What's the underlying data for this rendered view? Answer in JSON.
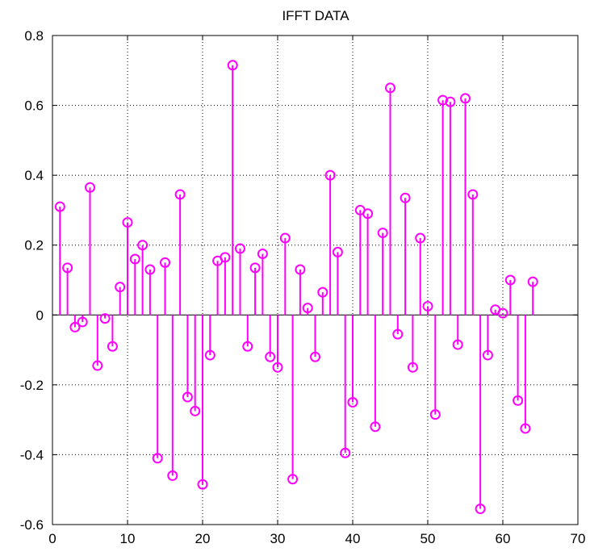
{
  "chart_data": {
    "type": "stem",
    "title": "IFFT DATA",
    "xlabel": "",
    "ylabel": "",
    "xlim": [
      0,
      70
    ],
    "ylim": [
      -0.6,
      0.8
    ],
    "xticks": [
      0,
      10,
      20,
      30,
      40,
      50,
      60,
      70
    ],
    "yticks": [
      -0.6,
      -0.4,
      -0.2,
      0,
      0.2,
      0.4,
      0.6,
      0.8
    ],
    "xtick_labels": [
      "0",
      "10",
      "20",
      "30",
      "40",
      "50",
      "60",
      "70"
    ],
    "ytick_labels": [
      "-0.6",
      "-0.4",
      "-0.2",
      "0",
      "0.2",
      "0.4",
      "0.6",
      "0.8"
    ],
    "grid": true,
    "grid_style": "dotted",
    "marker": "circle-open",
    "color": "#ff00ff",
    "x": [
      1,
      2,
      3,
      4,
      5,
      6,
      7,
      8,
      9,
      10,
      11,
      12,
      13,
      14,
      15,
      16,
      17,
      18,
      19,
      20,
      21,
      22,
      23,
      24,
      25,
      26,
      27,
      28,
      29,
      30,
      31,
      32,
      33,
      34,
      35,
      36,
      37,
      38,
      39,
      40,
      41,
      42,
      43,
      44,
      45,
      46,
      47,
      48,
      49,
      50,
      51,
      52,
      53,
      54,
      55,
      56,
      57,
      58,
      59,
      60,
      61,
      62,
      63,
      64
    ],
    "values": [
      0.31,
      0.135,
      -0.035,
      -0.02,
      0.365,
      -0.145,
      -0.01,
      -0.09,
      0.08,
      0.265,
      0.16,
      0.2,
      0.13,
      -0.41,
      0.15,
      -0.46,
      0.345,
      -0.235,
      -0.275,
      -0.485,
      -0.115,
      0.155,
      0.165,
      0.715,
      0.19,
      -0.09,
      0.135,
      0.175,
      -0.12,
      -0.15,
      0.22,
      -0.47,
      0.13,
      0.02,
      -0.12,
      0.065,
      0.4,
      0.18,
      -0.395,
      -0.25,
      0.3,
      0.29,
      -0.32,
      0.235,
      0.65,
      -0.055,
      0.335,
      -0.15,
      0.22,
      0.025,
      -0.285,
      0.615,
      0.61,
      -0.085,
      0.62,
      0.345,
      -0.555,
      -0.115,
      0.015,
      0.005,
      0.1,
      -0.245,
      -0.325,
      0.095
    ]
  }
}
